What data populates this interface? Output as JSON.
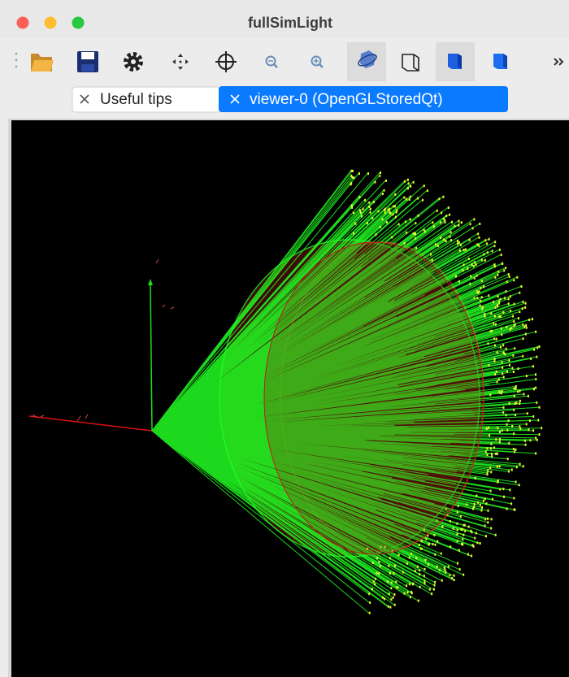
{
  "window": {
    "title": "fullSimLight"
  },
  "tabs": [
    {
      "label": "Useful tips"
    },
    {
      "label": "viewer-0 (OpenGLStoredQt)"
    }
  ]
}
